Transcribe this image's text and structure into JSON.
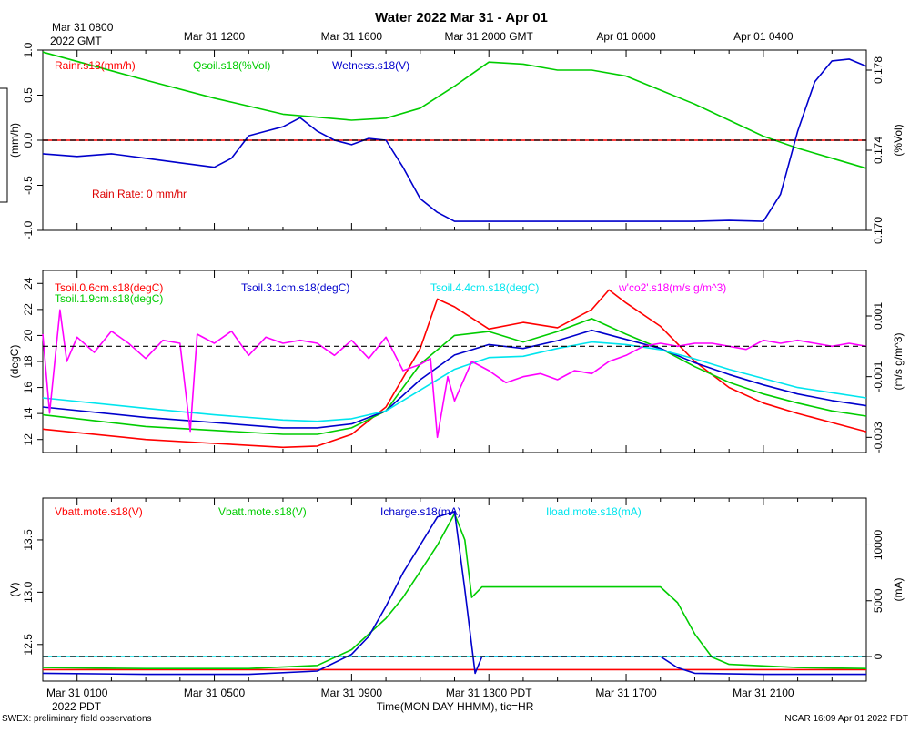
{
  "title": "Water 2022 Mar 31 - Apr 01",
  "top_axis": {
    "start_label_line1": "Mar 31 0800",
    "start_label_line2": "2022 GMT",
    "labels": [
      {
        "hour": 4,
        "text": "Mar 31 1200"
      },
      {
        "hour": 8,
        "text": "Mar 31 1600"
      },
      {
        "hour": 12,
        "text": "Mar 31 2000 GMT"
      },
      {
        "hour": 16,
        "text": "Apr 01 0000"
      },
      {
        "hour": 20,
        "text": "Apr 01 0400"
      }
    ]
  },
  "bottom_axis": {
    "labels": [
      {
        "hour": 0,
        "text": "Mar 31 0100"
      },
      {
        "hour": 4,
        "text": "Mar 31 0500"
      },
      {
        "hour": 8,
        "text": "Mar 31 0900"
      },
      {
        "hour": 12,
        "text": "Mar 31 1300 PDT"
      },
      {
        "hour": 16,
        "text": "Mar 31 1700"
      },
      {
        "hour": 20,
        "text": "Mar 31 2100"
      }
    ],
    "start_label_line2": "2022 PDT",
    "xlabel": "Time(MON DAY HHMM), tic=HR"
  },
  "footer": {
    "left": "SWEX: preliminary field observations",
    "right": "NCAR 16:09 Apr 01 2022 PDT"
  },
  "chart_data": [
    {
      "type": "line",
      "panel": "rain-soil-wetness",
      "x_range_hours": [
        -1,
        23
      ],
      "left_axis": {
        "label": "(mm/h)",
        "ylim": [
          -1.0,
          1.0
        ],
        "ticks": [
          "1.0",
          "0.5",
          "0.0",
          "-0.5",
          "-1.0"
        ],
        "tick_values": [
          1.0,
          0.5,
          0.0,
          -0.5,
          -1.0
        ]
      },
      "right_axis": {
        "label": "(%Vol)",
        "ylim": [
          0.17,
          0.179
        ],
        "ticks": [
          "0.178",
          "0.174",
          "0.170"
        ],
        "tick_values": [
          0.178,
          0.174,
          0.17
        ]
      },
      "zero_line": {
        "value": 0.0,
        "axis": "left"
      },
      "annotation": "Rain Rate: 0 mm/hr",
      "series": [
        {
          "name": "Rainr.s18(mm/h)",
          "color": "#ff0000",
          "axis": "left",
          "x": [
            -1,
            23
          ],
          "values": [
            0.0,
            0.0
          ]
        },
        {
          "name": "Qsoil.s18(%Vol)",
          "color": "#00cc00",
          "axis": "right",
          "x": [
            -1,
            2,
            4,
            6,
            8,
            9,
            10,
            11,
            12,
            13,
            14,
            15,
            16,
            17,
            18,
            19,
            20,
            21,
            22,
            23
          ],
          "values": [
            0.1789,
            0.1775,
            0.1766,
            0.1758,
            0.1755,
            0.1756,
            0.1761,
            0.1772,
            0.1784,
            0.1783,
            0.178,
            0.178,
            0.1777,
            0.177,
            0.1763,
            0.1755,
            0.1747,
            0.1741,
            0.1736,
            0.1731
          ]
        },
        {
          "name": "Wetness.s18(V)",
          "color": "#0000cc",
          "axis": "left",
          "x": [
            -1,
            0,
            1,
            2,
            3,
            4,
            4.5,
            5,
            5.5,
            6,
            6.5,
            7,
            7.5,
            8,
            8.5,
            9,
            9.5,
            10,
            10.5,
            11,
            12,
            13,
            14,
            15,
            16,
            17,
            18,
            19,
            20,
            20.5,
            21,
            21.5,
            22,
            22.5,
            23
          ],
          "values": [
            -0.15,
            -0.18,
            -0.15,
            -0.2,
            -0.25,
            -0.3,
            -0.2,
            0.05,
            0.1,
            0.15,
            0.25,
            0.1,
            0.0,
            -0.05,
            0.02,
            0.0,
            -0.3,
            -0.65,
            -0.8,
            -0.9,
            -0.9,
            -0.9,
            -0.9,
            -0.9,
            -0.9,
            -0.9,
            -0.9,
            -0.89,
            -0.9,
            -0.6,
            0.1,
            0.65,
            0.88,
            0.9,
            0.82
          ]
        }
      ]
    },
    {
      "type": "line",
      "panel": "soil-temperature-co2",
      "x_range_hours": [
        -1,
        23
      ],
      "left_axis": {
        "label": "(degC)",
        "ylim": [
          11,
          25
        ],
        "ticks": [
          "24",
          "22",
          "20",
          "18",
          "16",
          "14",
          "12"
        ],
        "tick_values": [
          24,
          22,
          20,
          18,
          16,
          14,
          12
        ]
      },
      "right_axis": {
        "label": "(m/s g/m^3)",
        "ylim": [
          -0.0035,
          0.0025
        ],
        "ticks": [
          "0.001",
          "-0.001",
          "-0.003"
        ],
        "tick_values": [
          0.001,
          -0.001,
          -0.003
        ]
      },
      "zero_line": {
        "value": 0.0,
        "axis": "right"
      },
      "series": [
        {
          "name": "Tsoil.0.6cm.s18(degC)",
          "color": "#ff0000",
          "axis": "left",
          "x": [
            -1,
            2,
            4,
            6,
            7,
            8,
            9,
            10,
            10.5,
            11,
            12,
            13,
            14,
            15,
            15.5,
            16,
            17,
            18,
            19,
            20,
            21,
            22,
            23
          ],
          "values": [
            12.8,
            12.0,
            11.7,
            11.4,
            11.5,
            12.4,
            14.5,
            19.0,
            22.8,
            22.2,
            20.5,
            21.0,
            20.6,
            22.0,
            23.5,
            22.5,
            20.7,
            18.0,
            16.0,
            14.8,
            14.0,
            13.3,
            12.6
          ]
        },
        {
          "name": "Tsoil.1.9cm.s18(degC)",
          "color": "#00cc00",
          "axis": "left",
          "x": [
            -1,
            2,
            4,
            6,
            7,
            8,
            9,
            10,
            11,
            12,
            13,
            14,
            15,
            16,
            17,
            18,
            19,
            20,
            21,
            22,
            23
          ],
          "values": [
            13.9,
            13.0,
            12.7,
            12.4,
            12.4,
            12.9,
            14.2,
            17.8,
            20.0,
            20.3,
            19.5,
            20.3,
            21.3,
            20.1,
            19.0,
            17.6,
            16.4,
            15.5,
            14.8,
            14.2,
            13.8
          ]
        },
        {
          "name": "Tsoil.3.1cm.s18(degC)",
          "color": "#0000cc",
          "axis": "left",
          "x": [
            -1,
            2,
            4,
            6,
            7,
            8,
            9,
            10,
            11,
            12,
            13,
            14,
            15,
            16,
            17,
            18,
            19,
            20,
            21,
            22,
            23
          ],
          "values": [
            14.5,
            13.7,
            13.3,
            12.9,
            12.9,
            13.2,
            14.2,
            16.6,
            18.5,
            19.3,
            19.0,
            19.6,
            20.4,
            19.7,
            19.0,
            17.9,
            17.0,
            16.2,
            15.5,
            15.0,
            14.6
          ]
        },
        {
          "name": "Tsoil.4.4cm.s18(degC)",
          "color": "#00e5ee",
          "axis": "left",
          "x": [
            -1,
            2,
            4,
            6,
            7,
            8,
            9,
            10,
            11,
            12,
            13,
            14,
            15,
            16,
            17,
            18,
            19,
            20,
            21,
            22,
            23
          ],
          "values": [
            15.2,
            14.4,
            13.9,
            13.5,
            13.4,
            13.6,
            14.2,
            15.8,
            17.4,
            18.3,
            18.4,
            19.0,
            19.5,
            19.3,
            18.9,
            18.2,
            17.4,
            16.7,
            16.0,
            15.6,
            15.2
          ]
        },
        {
          "name": "w'co2'.s18(m/s g/m^3)",
          "color": "#ff00ff",
          "axis": "right",
          "x": [
            -1,
            -0.8,
            -0.5,
            -0.3,
            0,
            0.5,
            1,
            1.5,
            2,
            2.5,
            3,
            3.3,
            3.5,
            4,
            4.5,
            5,
            5.5,
            6,
            6.5,
            7,
            7.5,
            8,
            8.5,
            9,
            9.5,
            10,
            10.3,
            10.5,
            10.8,
            11,
            11.5,
            12,
            12.5,
            13,
            13.5,
            14,
            14.5,
            15,
            15.5,
            16,
            16.5,
            17,
            17.5,
            18,
            18.5,
            19,
            19.5,
            20,
            20.5,
            21,
            21.5,
            22,
            22.5,
            23
          ],
          "values": [
            0.0004,
            -0.0022,
            0.0012,
            -0.0005,
            0.0003,
            -0.0002,
            0.0005,
            0.0001,
            -0.0004,
            0.0002,
            0.0001,
            -0.0028,
            0.0004,
            0.0001,
            0.0005,
            -0.0003,
            0.0003,
            0.0001,
            0.0002,
            0.0001,
            -0.0003,
            0.0002,
            -0.0004,
            0.0003,
            -0.0008,
            -0.0006,
            -0.0004,
            -0.003,
            -0.001,
            -0.0018,
            -0.0005,
            -0.0008,
            -0.0012,
            -0.001,
            -0.0009,
            -0.0011,
            -0.0008,
            -0.0009,
            -0.0005,
            -0.0003,
            0.0,
            0.0001,
            0.0,
            0.0001,
            0.0001,
            0.0,
            -0.0001,
            0.0002,
            0.0001,
            0.0002,
            0.0001,
            0.0,
            0.0001,
            0.0
          ]
        }
      ]
    },
    {
      "type": "line",
      "panel": "battery-charge",
      "x_range_hours": [
        -1,
        23
      ],
      "left_axis": {
        "label": "(V)",
        "ylim": [
          12.15,
          13.9
        ],
        "ticks": [
          "13.5",
          "13.0",
          "12.5"
        ],
        "tick_values": [
          13.5,
          13.0,
          12.5
        ]
      },
      "right_axis": {
        "label": "(mA)",
        "ylim": [
          -2200,
          14200
        ],
        "ticks": [
          "10000",
          "5000",
          "0"
        ],
        "tick_values": [
          10000,
          5000,
          0
        ]
      },
      "zero_line": {
        "value": 0,
        "axis": "right"
      },
      "series": [
        {
          "name": "Vbatt.mote.s18(V)",
          "color": "#ff0000",
          "axis": "left",
          "x": [
            -1,
            23
          ],
          "values": [
            12.26,
            12.26
          ]
        },
        {
          "name": "Vbatt.mote.s18(V)",
          "color": "#00cc00",
          "axis": "left",
          "x": [
            -1,
            2,
            5,
            7,
            8,
            9,
            9.5,
            10,
            10.5,
            11,
            11.3,
            11.5,
            11.8,
            12,
            14,
            16,
            17,
            17.5,
            18,
            18.5,
            19,
            21,
            23
          ],
          "values": [
            12.28,
            12.27,
            12.27,
            12.3,
            12.45,
            12.75,
            12.95,
            13.2,
            13.45,
            13.75,
            13.5,
            12.95,
            13.05,
            13.05,
            13.05,
            13.05,
            13.05,
            12.9,
            12.6,
            12.38,
            12.31,
            12.28,
            12.27
          ]
        },
        {
          "name": "Icharge.s18(mA)",
          "color": "#0000cc",
          "axis": "right",
          "x": [
            -1,
            2,
            5,
            7,
            8,
            8.5,
            9,
            9.5,
            10,
            10.5,
            11,
            11.3,
            11.6,
            11.8,
            12,
            14,
            16,
            17,
            17.5,
            18,
            20,
            23
          ],
          "values": [
            -1500,
            -1600,
            -1600,
            -1300,
            200,
            1800,
            4500,
            7500,
            10000,
            12500,
            13000,
            6000,
            -1500,
            0,
            0,
            0,
            0,
            0,
            -1000,
            -1500,
            -1600,
            -1600
          ]
        },
        {
          "name": "Iload.mote.s18(mA)",
          "color": "#00e5ee",
          "axis": "right",
          "x": [
            -1,
            23
          ],
          "values": [
            0,
            0
          ]
        }
      ]
    }
  ]
}
